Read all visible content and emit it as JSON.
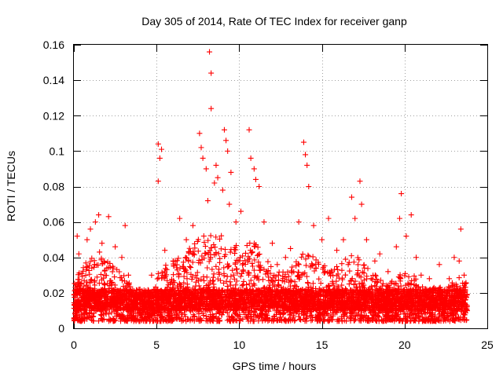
{
  "chart_data": {
    "type": "scatter",
    "title": "Day 305 of 2014, Rate Of TEC Index for receiver ganp",
    "xlabel": "GPS time / hours",
    "ylabel": "ROTI / TECUs",
    "xlim": [
      0,
      25
    ],
    "ylim": [
      0,
      0.16
    ],
    "xticks": [
      0,
      5,
      10,
      15,
      20,
      25
    ],
    "yticks": [
      0,
      0.02,
      0.04,
      0.06,
      0.08,
      0.1,
      0.12,
      0.14,
      0.16
    ],
    "xtick_labels": [
      "0",
      "5",
      "10",
      "15",
      "20",
      "25"
    ],
    "ytick_labels": [
      "0",
      "0.02",
      "0.04",
      "0.06",
      "0.08",
      "0.1",
      "0.12",
      "0.14",
      "0.16"
    ],
    "grid": true,
    "marker": "+",
    "color": "#ff0000",
    "series": [
      {
        "name": "ROTI",
        "points": [
          [
            0.2,
            0.052
          ],
          [
            0.3,
            0.042
          ],
          [
            0.8,
            0.05
          ],
          [
            1.0,
            0.056
          ],
          [
            1.3,
            0.06
          ],
          [
            1.5,
            0.064
          ],
          [
            1.7,
            0.048
          ],
          [
            2.1,
            0.063
          ],
          [
            2.5,
            0.046
          ],
          [
            2.9,
            0.04
          ],
          [
            3.1,
            0.058
          ],
          [
            3.3,
            0.03
          ],
          [
            4.0,
            0.022
          ],
          [
            4.7,
            0.03
          ],
          [
            5.1,
            0.104
          ],
          [
            5.1,
            0.083
          ],
          [
            5.2,
            0.096
          ],
          [
            5.3,
            0.101
          ],
          [
            5.5,
            0.044
          ],
          [
            6.0,
            0.038
          ],
          [
            6.4,
            0.062
          ],
          [
            6.8,
            0.05
          ],
          [
            7.2,
            0.058
          ],
          [
            7.6,
            0.11
          ],
          [
            7.7,
            0.102
          ],
          [
            7.8,
            0.096
          ],
          [
            8.0,
            0.09
          ],
          [
            8.1,
            0.072
          ],
          [
            8.2,
            0.156
          ],
          [
            8.3,
            0.144
          ],
          [
            8.3,
            0.124
          ],
          [
            8.5,
            0.082
          ],
          [
            8.6,
            0.092
          ],
          [
            8.7,
            0.085
          ],
          [
            9.0,
            0.078
          ],
          [
            9.1,
            0.112
          ],
          [
            9.2,
            0.106
          ],
          [
            9.3,
            0.1
          ],
          [
            9.4,
            0.07
          ],
          [
            9.5,
            0.088
          ],
          [
            9.8,
            0.06
          ],
          [
            10.1,
            0.066
          ],
          [
            10.6,
            0.112
          ],
          [
            10.7,
            0.096
          ],
          [
            10.9,
            0.09
          ],
          [
            11.0,
            0.084
          ],
          [
            11.2,
            0.08
          ],
          [
            11.5,
            0.06
          ],
          [
            12.0,
            0.048
          ],
          [
            12.3,
            0.036
          ],
          [
            12.8,
            0.04
          ],
          [
            13.1,
            0.045
          ],
          [
            13.6,
            0.06
          ],
          [
            13.9,
            0.105
          ],
          [
            14.0,
            0.098
          ],
          [
            14.1,
            0.092
          ],
          [
            14.2,
            0.08
          ],
          [
            14.5,
            0.058
          ],
          [
            15.0,
            0.05
          ],
          [
            15.4,
            0.062
          ],
          [
            15.9,
            0.044
          ],
          [
            16.3,
            0.05
          ],
          [
            16.8,
            0.074
          ],
          [
            17.0,
            0.062
          ],
          [
            17.3,
            0.083
          ],
          [
            17.4,
            0.07
          ],
          [
            17.7,
            0.05
          ],
          [
            18.2,
            0.038
          ],
          [
            18.5,
            0.042
          ],
          [
            19.0,
            0.032
          ],
          [
            19.5,
            0.046
          ],
          [
            19.7,
            0.062
          ],
          [
            19.8,
            0.076
          ],
          [
            20.1,
            0.052
          ],
          [
            20.4,
            0.064
          ],
          [
            20.7,
            0.04
          ],
          [
            21.0,
            0.03
          ],
          [
            21.5,
            0.028
          ],
          [
            22.1,
            0.036
          ],
          [
            22.7,
            0.028
          ],
          [
            23.0,
            0.04
          ],
          [
            23.3,
            0.038
          ],
          [
            23.4,
            0.056
          ],
          [
            23.6,
            0.03
          ]
        ]
      }
    ],
    "background_density": {
      "description": "dense band of ROTI samples across all hours",
      "envelope_x": [
        0.0,
        0.5,
        1.0,
        1.5,
        2.0,
        2.5,
        3.0,
        3.5,
        4.0,
        4.5,
        5.0,
        5.5,
        6.0,
        6.5,
        7.0,
        7.5,
        8.0,
        8.5,
        9.0,
        9.5,
        10.0,
        10.5,
        11.0,
        11.5,
        12.0,
        12.5,
        13.0,
        13.5,
        14.0,
        14.5,
        15.0,
        15.5,
        16.0,
        16.5,
        17.0,
        17.5,
        18.0,
        18.5,
        19.0,
        19.5,
        20.0,
        20.5,
        21.0,
        21.5,
        22.0,
        22.5,
        23.0,
        23.5,
        23.8
      ],
      "envelope_y": [
        0.03,
        0.036,
        0.04,
        0.044,
        0.04,
        0.034,
        0.03,
        0.024,
        0.018,
        0.02,
        0.03,
        0.036,
        0.038,
        0.042,
        0.046,
        0.05,
        0.055,
        0.052,
        0.055,
        0.05,
        0.046,
        0.05,
        0.048,
        0.04,
        0.036,
        0.032,
        0.034,
        0.038,
        0.044,
        0.04,
        0.036,
        0.034,
        0.036,
        0.04,
        0.042,
        0.038,
        0.032,
        0.03,
        0.026,
        0.028,
        0.036,
        0.032,
        0.024,
        0.022,
        0.024,
        0.022,
        0.028,
        0.03,
        0.024
      ],
      "floor_y": 0.004,
      "samples": 5200,
      "seed": 20141101
    }
  }
}
